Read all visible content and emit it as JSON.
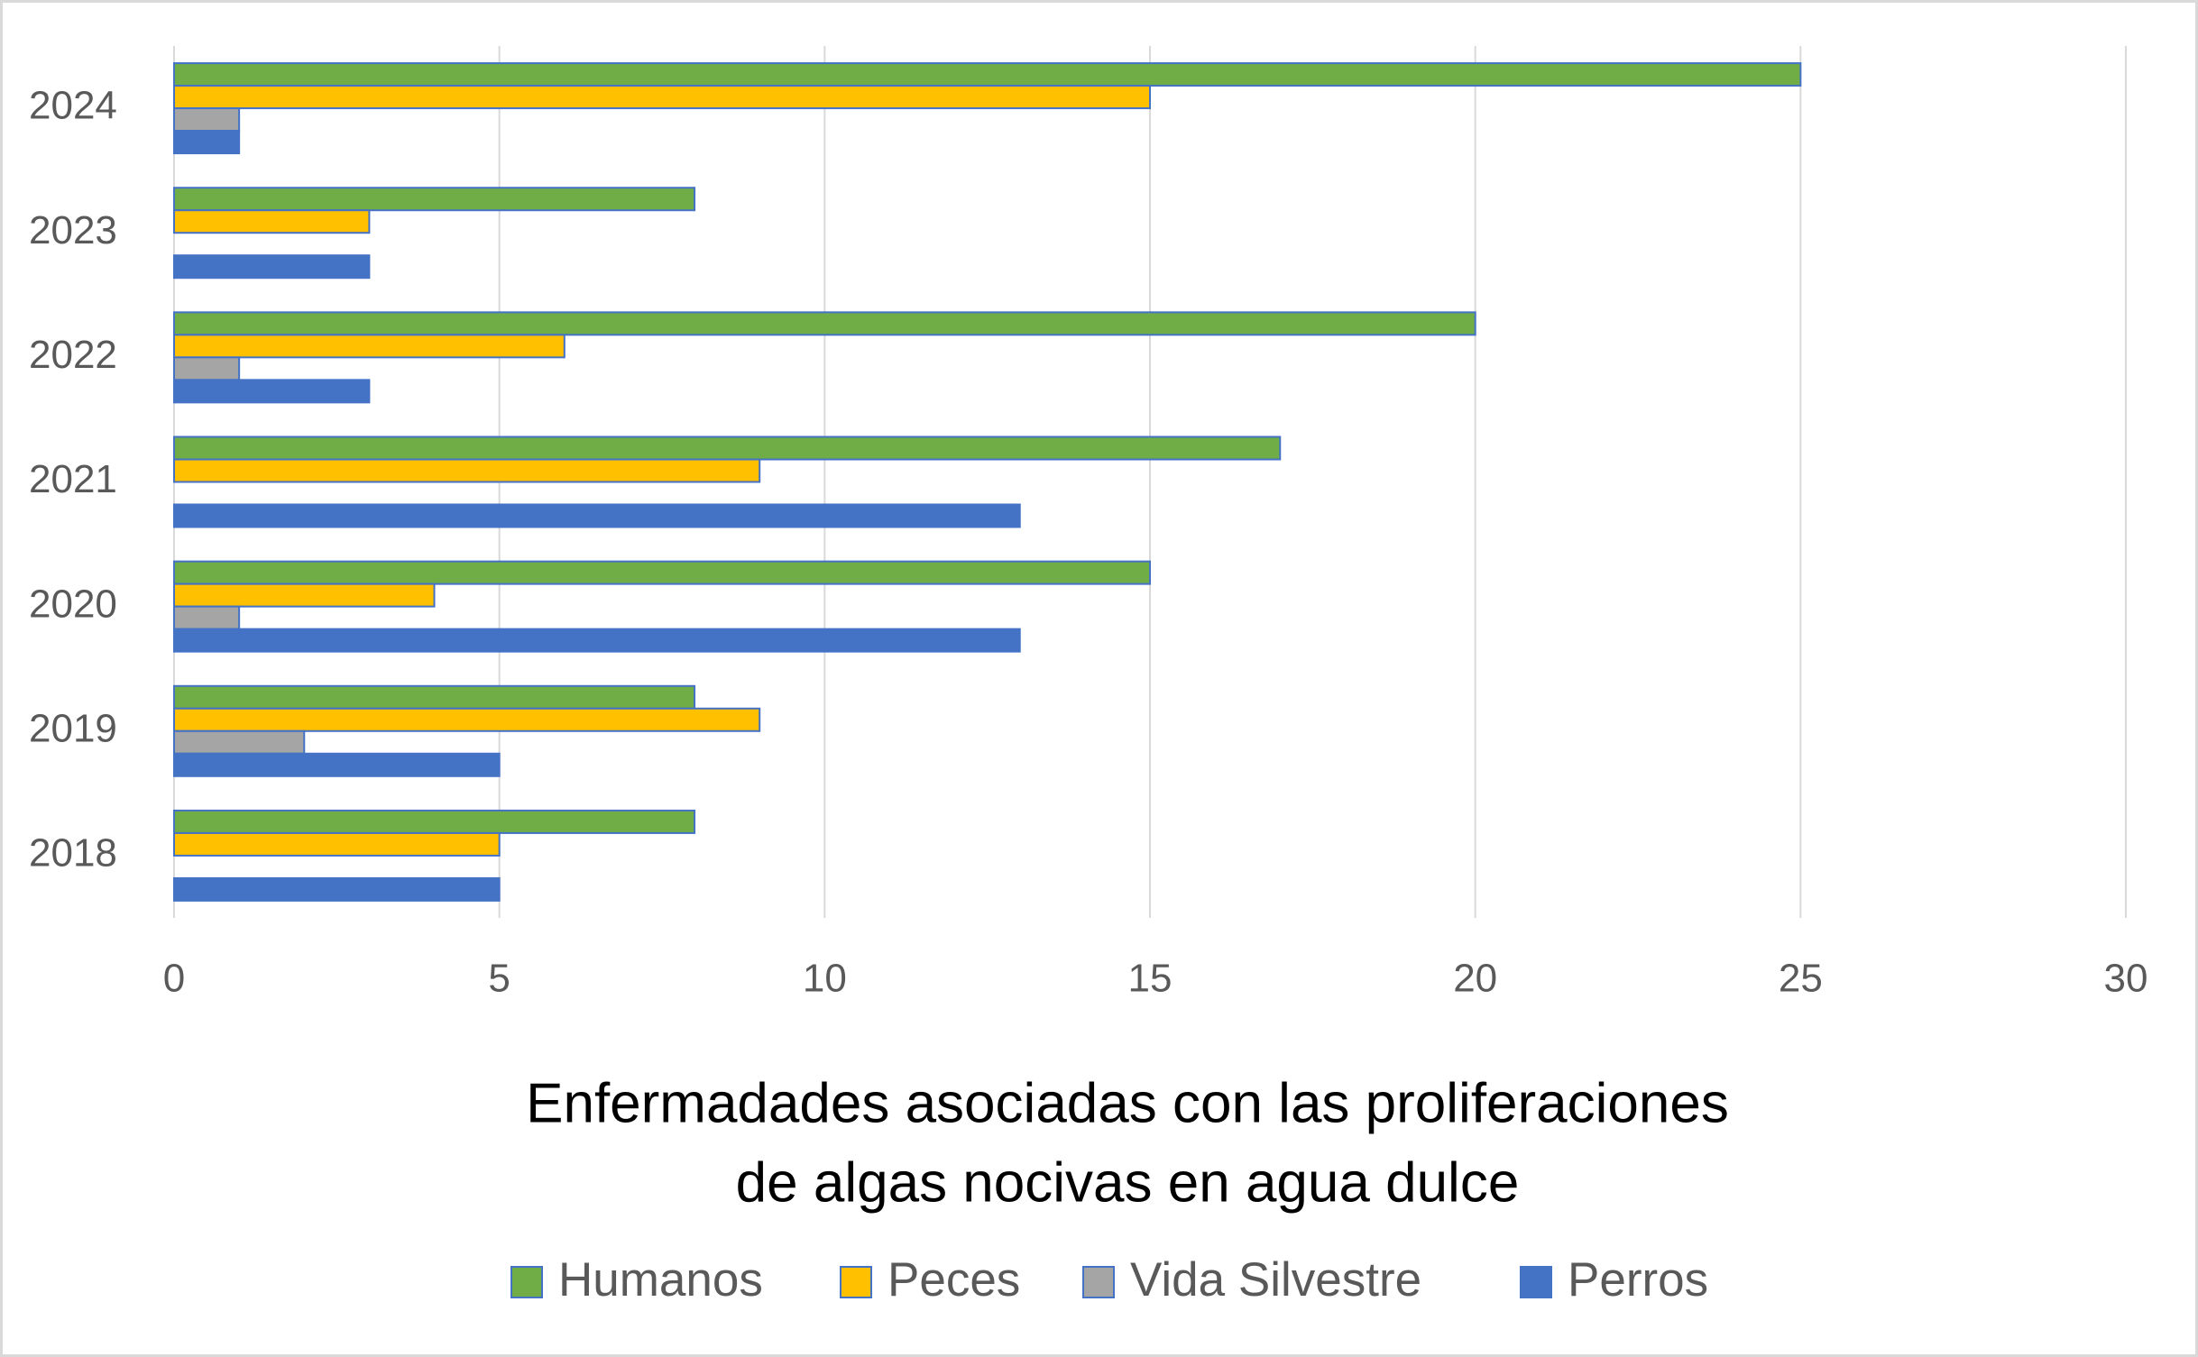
{
  "chart_data": {
    "type": "hbar",
    "title": [
      "Enfermadades asociadas con las proliferaciones",
      "de algas nocivas en agua dulce"
    ],
    "categories": [
      "2018",
      "2019",
      "2020",
      "2021",
      "2022",
      "2023",
      "2024"
    ],
    "series": [
      {
        "name": "Humanos",
        "color": "#70ad47",
        "values": [
          8,
          8,
          15,
          17,
          20,
          8,
          25
        ]
      },
      {
        "name": "Peces",
        "color": "#ffc000",
        "values": [
          5,
          9,
          4,
          9,
          6,
          3,
          15
        ]
      },
      {
        "name": "Vida Silvestre",
        "color": "#a5a5a5",
        "values": [
          0,
          2,
          1,
          0,
          1,
          0,
          1
        ]
      },
      {
        "name": "Perros",
        "color": "#4472c4",
        "values": [
          5,
          5,
          13,
          13,
          3,
          3,
          1
        ]
      }
    ],
    "xlim": [
      0,
      30
    ],
    "xticks": [
      0,
      5,
      10,
      15,
      20,
      25,
      30
    ],
    "grid": true,
    "legend": "bottom"
  }
}
